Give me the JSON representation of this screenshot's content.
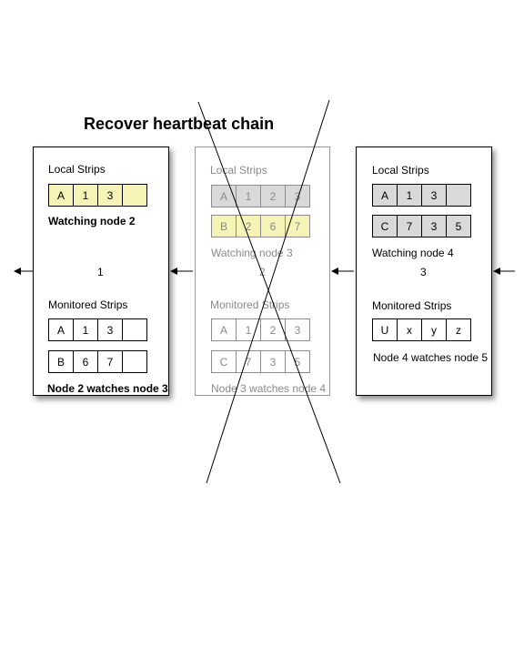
{
  "title": "Recover heartbeat chain",
  "nodes": [
    {
      "local_label": "Local Strips",
      "local_strips": [
        [
          "A",
          "1",
          "3",
          ""
        ]
      ],
      "watching": "Watching node 2",
      "number": "1",
      "monitored_label": "Monitored Strips",
      "monitored_strips": [
        [
          "A",
          "1",
          "3",
          ""
        ],
        [
          "B",
          "6",
          "7",
          ""
        ]
      ],
      "watches": "Node 2 watches node 3"
    },
    {
      "local_label": "Local Strips",
      "local_strips": [
        [
          "A",
          "1",
          "2",
          "3"
        ],
        [
          "B",
          "2",
          "6",
          "7"
        ]
      ],
      "watching": "Watching node 3",
      "number": "2",
      "monitored_label": "Monitored Strips",
      "monitored_strips": [
        [
          "A",
          "1",
          "2",
          "3"
        ],
        [
          "C",
          "7",
          "3",
          "5"
        ]
      ],
      "watches": "Node 3 watches node 4",
      "status": "failed"
    },
    {
      "local_label": "Local Strips",
      "local_strips": [
        [
          "A",
          "1",
          "3",
          ""
        ],
        [
          "C",
          "7",
          "3",
          "5"
        ]
      ],
      "watching": "Watching node 4",
      "number": "3",
      "monitored_label": "Monitored Strips",
      "monitored_strips": [
        [
          "U",
          "x",
          "y",
          "z"
        ]
      ],
      "watches": "Node 4 watches node 5"
    }
  ],
  "colors": {
    "highlight": "#f5f3b5",
    "inactive": "#d9d9d9",
    "failed_text": "#8a8a8a"
  }
}
